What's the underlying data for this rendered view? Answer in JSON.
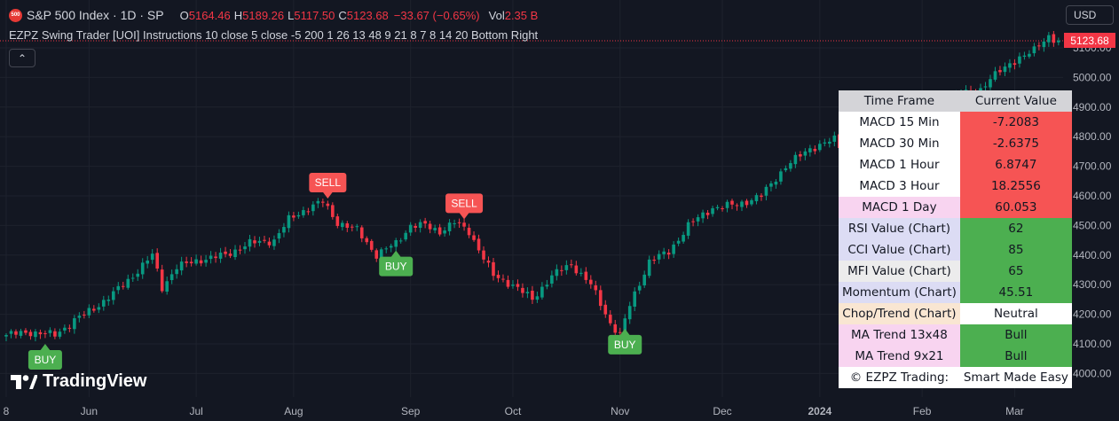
{
  "header": {
    "badge": "500",
    "symbol": "S&P 500 Index · 1D · SP",
    "ohlc": [
      {
        "label": "O",
        "value": "5164.46"
      },
      {
        "label": "H",
        "value": "5189.26"
      },
      {
        "label": "L",
        "value": "5117.50"
      },
      {
        "label": "C",
        "value": "5123.68"
      }
    ],
    "change": "−33.67 (−0.65%)",
    "vol_label": "Vol",
    "vol_value": "2.35 B"
  },
  "indicator_line": "EZPZ Swing Trader [UOI] Instructions 10 close 5 close -5 200 1 26 13 48 9 21 8 7 8 14 20 Bottom Right",
  "collapse_glyph": "⌃",
  "currency": "USD",
  "last_price": "5123.68",
  "price_axis": {
    "min": 3950,
    "max": 5150,
    "ticks": [
      "5100.00",
      "5000.00",
      "4900.00",
      "4800.00",
      "4700.00",
      "4600.00",
      "4500.00",
      "4400.00",
      "4300.00",
      "4200.00",
      "4100.00",
      "4000.00"
    ]
  },
  "time_axis": [
    "8",
    "Jun",
    "Jul",
    "Aug",
    "Sep",
    "Oct",
    "Nov",
    "Dec",
    "2024",
    "Feb",
    "Mar"
  ],
  "signals": [
    {
      "type": "buy",
      "label": "BUY",
      "day": 8
    },
    {
      "type": "sell",
      "label": "SELL",
      "day": 66
    },
    {
      "type": "buy",
      "label": "BUY",
      "day": 80
    },
    {
      "type": "sell",
      "label": "SELL",
      "day": 94
    },
    {
      "type": "buy",
      "label": "BUY",
      "day": 127
    }
  ],
  "logo_text": "TradingView",
  "colors": {
    "up": "#089981",
    "down": "#f23645",
    "background": "#131722",
    "buy": "#4caf50",
    "sell": "#f65454"
  },
  "table": {
    "header": [
      "Time Frame",
      "Current Value"
    ],
    "rows": [
      {
        "label": "MACD 15 Min",
        "value": "-7.2083",
        "label_bg": "#ffffff",
        "value_bg": "#f65454"
      },
      {
        "label": "MACD 30 Min",
        "value": "-2.6375",
        "label_bg": "#ffffff",
        "value_bg": "#f65454"
      },
      {
        "label": "MACD 1 Hour",
        "value": "6.8747",
        "label_bg": "#ffffff",
        "value_bg": "#f65454"
      },
      {
        "label": "MACD 3 Hour",
        "value": "18.2556",
        "label_bg": "#ffffff",
        "value_bg": "#f65454"
      },
      {
        "label": "MACD 1 Day",
        "value": "60.053",
        "label_bg": "#f8d4f0",
        "value_bg": "#f65454"
      },
      {
        "label": "RSI Value (Chart)",
        "value": "62",
        "label_bg": "#dcdcf4",
        "value_bg": "#4caf50"
      },
      {
        "label": "CCI Value (Chart)",
        "value": "85",
        "label_bg": "#dcdcf4",
        "value_bg": "#4caf50"
      },
      {
        "label": "MFI Value (Chart)",
        "value": "65",
        "label_bg": "#ececec",
        "value_bg": "#4caf50"
      },
      {
        "label": "Momentum (Chart)",
        "value": "45.51",
        "label_bg": "#dcdcf4",
        "value_bg": "#4caf50"
      },
      {
        "label": "Chop/Trend (Chart)",
        "value": "Neutral",
        "label_bg": "#f9e6d2",
        "value_bg": "#ffffff"
      },
      {
        "label": "MA Trend 13x48",
        "value": "Bull",
        "label_bg": "#f8d4f0",
        "value_bg": "#4caf50"
      },
      {
        "label": "MA Trend 9x21",
        "value": "Bull",
        "label_bg": "#f8d4f0",
        "value_bg": "#4caf50"
      },
      {
        "label": "© EZPZ Trading:",
        "value": "Smart Made Easy",
        "label_bg": "#ffffff",
        "value_bg": "#ffffff"
      }
    ]
  },
  "chart_data": {
    "type": "candlestick",
    "x_unit": "trading days from chart start (May 8, 2023)",
    "anchors": [
      [
        0,
        4130
      ],
      [
        5,
        4140
      ],
      [
        10,
        4130
      ],
      [
        14,
        4180
      ],
      [
        18,
        4220
      ],
      [
        22,
        4270
      ],
      [
        26,
        4330
      ],
      [
        30,
        4400
      ],
      [
        32,
        4290
      ],
      [
        35,
        4360
      ],
      [
        40,
        4385
      ],
      [
        45,
        4400
      ],
      [
        50,
        4440
      ],
      [
        55,
        4450
      ],
      [
        58,
        4520
      ],
      [
        62,
        4560
      ],
      [
        65,
        4580
      ],
      [
        68,
        4510
      ],
      [
        72,
        4485
      ],
      [
        76,
        4400
      ],
      [
        80,
        4440
      ],
      [
        83,
        4500
      ],
      [
        86,
        4500
      ],
      [
        89,
        4480
      ],
      [
        92,
        4510
      ],
      [
        95,
        4480
      ],
      [
        100,
        4330
      ],
      [
        104,
        4300
      ],
      [
        108,
        4250
      ],
      [
        112,
        4330
      ],
      [
        116,
        4370
      ],
      [
        120,
        4300
      ],
      [
        124,
        4170
      ],
      [
        126,
        4130
      ],
      [
        128,
        4230
      ],
      [
        132,
        4380
      ],
      [
        136,
        4410
      ],
      [
        140,
        4500
      ],
      [
        145,
        4560
      ],
      [
        150,
        4570
      ],
      [
        155,
        4600
      ],
      [
        160,
        4700
      ],
      [
        165,
        4760
      ],
      [
        170,
        4790
      ],
      [
        173,
        4720
      ],
      [
        176,
        4700
      ],
      [
        180,
        4780
      ],
      [
        184,
        4800
      ],
      [
        188,
        4850
      ],
      [
        192,
        4900
      ],
      [
        196,
        4950
      ],
      [
        199,
        4940
      ],
      [
        202,
        5000
      ],
      [
        205,
        5030
      ],
      [
        208,
        5070
      ],
      [
        211,
        5090
      ],
      [
        214,
        5140
      ],
      [
        216,
        5123
      ]
    ]
  }
}
